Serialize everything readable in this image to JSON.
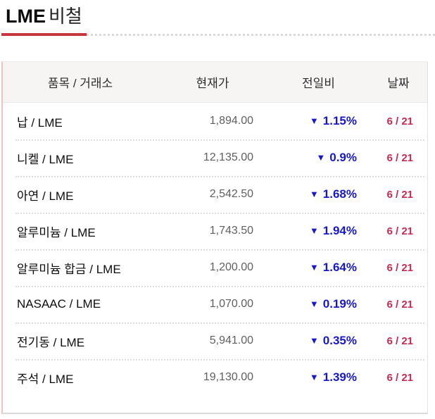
{
  "page": {
    "title_main": "LME",
    "title_sub": "비철",
    "accent_color": "#c5373d"
  },
  "colors": {
    "accent_red": "#c5373d",
    "change_down_blue": "#1717cf",
    "date_crimson": "#c62a52",
    "price_gray": "#5f5f5f",
    "header_bg": "#f6f5f3",
    "table_left_border_pink": "#f3c3c3"
  },
  "table": {
    "headers": {
      "item": "품목 / 거래소",
      "price": "현재가",
      "change": "전일비",
      "date": "날짜"
    },
    "rows": [
      {
        "item": "납 / LME",
        "price": "1,894.00",
        "change_icon": "▼",
        "change_percent": "1.15%",
        "date": "6 / 21"
      },
      {
        "item": "니켈 / LME",
        "price": "12,135.00",
        "change_icon": "▼",
        "change_percent": "0.9%",
        "date": "6 / 21"
      },
      {
        "item": "아연 / LME",
        "price": "2,542.50",
        "change_icon": "▼",
        "change_percent": "1.68%",
        "date": "6 / 21"
      },
      {
        "item": "알루미늄 / LME",
        "price": "1,743.50",
        "change_icon": "▼",
        "change_percent": "1.94%",
        "date": "6 / 21"
      },
      {
        "item": "알루미늄 합금 / LME",
        "price": "1,200.00",
        "change_icon": "▼",
        "change_percent": "1.64%",
        "date": "6 / 21"
      },
      {
        "item": "NASAAC / LME",
        "price": "1,070.00",
        "change_icon": "▼",
        "change_percent": "0.19%",
        "date": "6 / 21"
      },
      {
        "item": "전기동 / LME",
        "price": "5,941.00",
        "change_icon": "▼",
        "change_percent": "0.35%",
        "date": "6 / 21"
      },
      {
        "item": "주석 / LME",
        "price": "19,130.00",
        "change_icon": "▼",
        "change_percent": "1.39%",
        "date": "6 / 21"
      }
    ]
  }
}
